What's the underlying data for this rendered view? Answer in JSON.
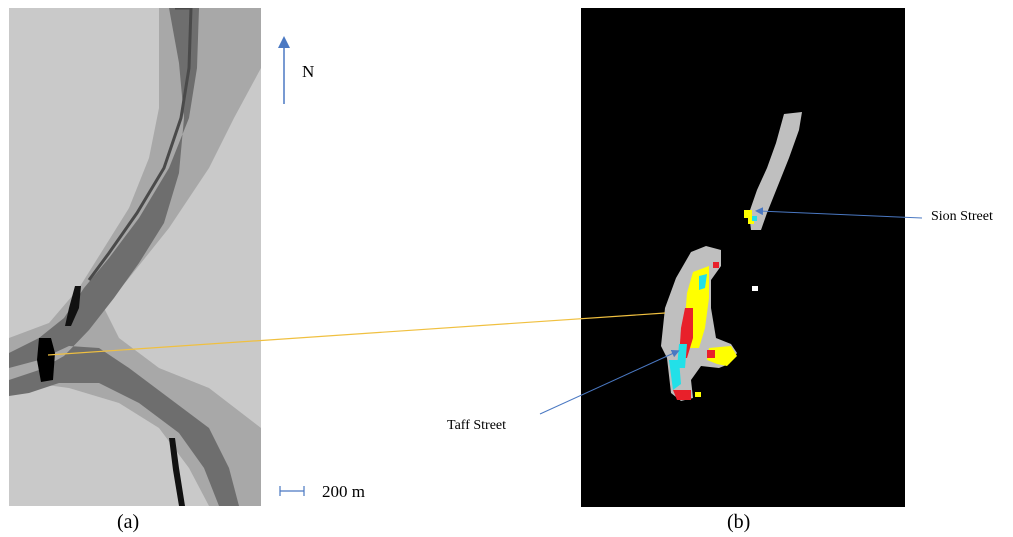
{
  "north_label": "N",
  "scale_label": "200 m",
  "caption_a": "(a)",
  "caption_b": "(b)",
  "callouts": {
    "sion": "Sion Street",
    "taff": "Taff Street"
  },
  "colors": {
    "terrain_light": "#c9c9c9",
    "terrain_mid": "#8a8a8a",
    "river_dark": "#5a5a5a",
    "flood_black": "#000000",
    "arrow_blue": "#4a78c2",
    "leader_orange": "#f0c040",
    "flood_yellow": "#ffff00",
    "flood_red": "#e8202a",
    "flood_cyan": "#22e0e8",
    "flood_gray": "#bfbfbf"
  }
}
